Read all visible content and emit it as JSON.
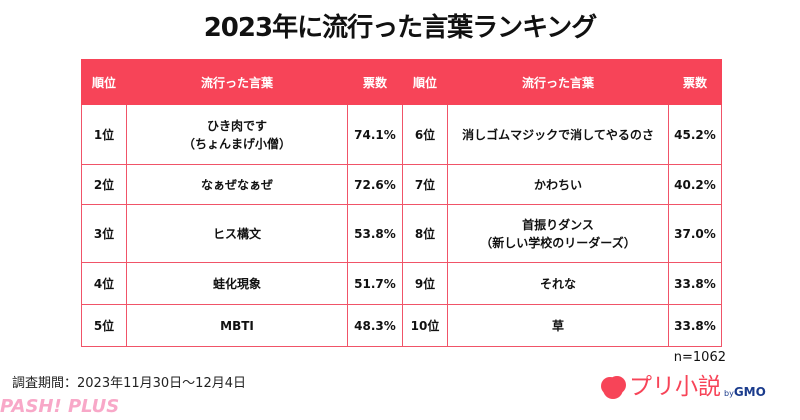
{
  "title": "2023年に流行った言葉ランキング",
  "headers": [
    "順位",
    "流行った言葉",
    "票数",
    "順位",
    "流行った言葉",
    "票数"
  ],
  "rows": [
    {
      "l_rank": "1位",
      "l_word": "ひき肉です\n（ちょんまげ小僧）",
      "l_pct": "74.1%",
      "r_rank": "6位",
      "r_word": "消しゴムマジックで消してやるのさ",
      "r_pct": "45.2%"
    },
    {
      "l_rank": "2位",
      "l_word": "なぁぜなぁぜ",
      "l_pct": "72.6%",
      "r_rank": "7位",
      "r_word": "かわちい",
      "r_pct": "40.2%"
    },
    {
      "l_rank": "3位",
      "l_word": "ヒス構文",
      "l_pct": "53.8%",
      "r_rank": "8位",
      "r_word": "首振りダンス\n（新しい学校のリーダーズ）",
      "r_pct": "37.0%"
    },
    {
      "l_rank": "4位",
      "l_word": "蛙化現象",
      "l_pct": "51.7%",
      "r_rank": "9位",
      "r_word": "それな",
      "r_pct": "33.8%"
    },
    {
      "l_rank": "5位",
      "l_word": "MBTI",
      "l_pct": "48.3%",
      "r_rank": "10位",
      "r_word": "草",
      "r_pct": "33.8%"
    }
  ],
  "sample_size": "n=1062",
  "survey_period": "調査期間：2023年11月30日〜12月4日",
  "logo": {
    "name": "プリ小説",
    "by": "by",
    "company": "GMO"
  },
  "watermark": "PASH! PLUS",
  "colors": {
    "accent": "#f74458"
  }
}
